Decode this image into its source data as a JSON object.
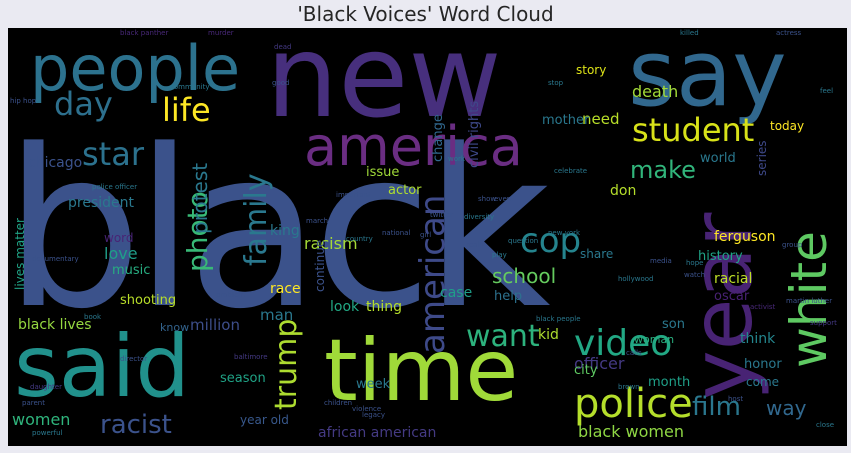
{
  "title": "'Black Voices' Word Cloud",
  "colors": {
    "background": "#eaeaf2",
    "canvas": "#000000",
    "title_text": "#262626"
  },
  "words": {
    "black": "black",
    "new": "new",
    "say": "say",
    "people": "people",
    "said": "said",
    "time": "time",
    "year": "year",
    "america": "america",
    "white": "white",
    "police": "police",
    "student": "student",
    "cop": "cop",
    "video": "video",
    "american": "american",
    "family": "family",
    "photo": "photo",
    "star": "star",
    "life": "life",
    "day": "day",
    "trump": "trump",
    "want": "want",
    "film": "film",
    "racist": "racist",
    "make": "make",
    "death": "death",
    "need": "need",
    "school": "school",
    "protest": "protest",
    "love": "love",
    "women": "women",
    "black_women": "black women",
    "african_american": "african american",
    "officer": "officer",
    "racism": "racism",
    "ferguson": "ferguson",
    "history": "history",
    "racial": "racial",
    "way": "way",
    "story": "story",
    "civil_rights": "civil rights",
    "president": "president",
    "chicago": "chicago",
    "music": "music",
    "shooting": "shooting",
    "lives_matter": "lives matter",
    "black_lives": "black lives",
    "million": "million",
    "know": "know",
    "man": "man",
    "look": "look",
    "thing": "thing",
    "kid": "kid",
    "son": "son",
    "woman": "woman",
    "think": "think",
    "honor": "honor",
    "come": "come",
    "month": "month",
    "city": "city",
    "week": "week",
    "year_old": "year old",
    "season": "season",
    "race": "race",
    "case": "case",
    "help": "help",
    "share": "share",
    "continue": "continue",
    "king": "king",
    "change": "change",
    "issue": "issue",
    "actor": "actor",
    "mother": "mother",
    "don": "don",
    "series": "series",
    "today": "today",
    "world": "world",
    "oscar": "oscar",
    "word": "word",
    "small_1": "hip hop",
    "small_2": "black panther",
    "small_3": "killed",
    "small_4": "actress",
    "small_5": "baltimore",
    "small_6": "hollywood",
    "small_7": "new york",
    "small_8": "martin luther",
    "small_9": "national",
    "small_10": "community",
    "small_11": "important",
    "small_12": "twitter",
    "small_13": "diversity",
    "small_14": "show",
    "small_15": "event",
    "small_16": "police officer",
    "small_17": "legacy",
    "small_18": "black people",
    "small_19": "director",
    "small_20": "daughter",
    "small_21": "parent",
    "small_22": "powerful",
    "small_23": "celebrate",
    "small_24": "feel",
    "small_25": "group",
    "small_26": "support",
    "small_27": "documentary",
    "small_28": "book",
    "small_29": "children",
    "small_30": "activist",
    "small_31": "problem",
    "small_32": "question",
    "small_33": "murder",
    "small_34": "calls",
    "small_35": "girl",
    "small_36": "country",
    "small_37": "march",
    "small_38": "work",
    "small_39": "really",
    "small_40": "play",
    "small_41": "watch",
    "small_42": "hope",
    "small_43": "media",
    "small_44": "brown",
    "small_45": "host",
    "small_46": "close",
    "small_47": "good",
    "small_48": "stop",
    "small_49": "dead",
    "small_50": "violence"
  }
}
